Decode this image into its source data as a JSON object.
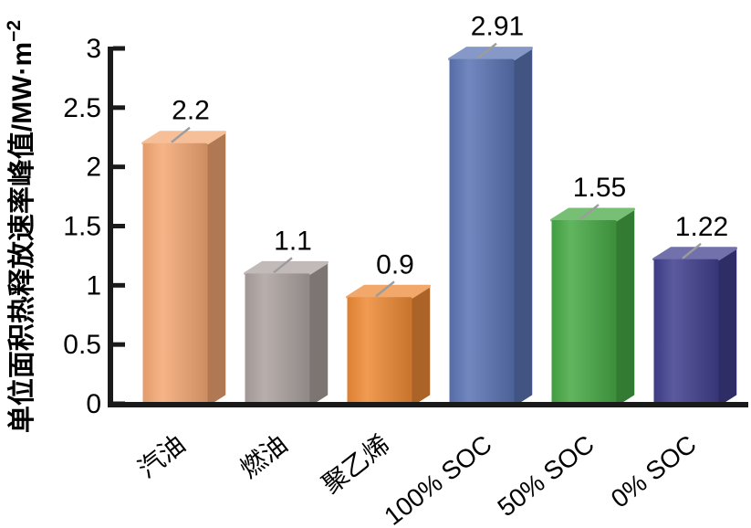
{
  "chart_data": {
    "type": "bar",
    "title": "",
    "xlabel": "",
    "ylabel": "单位面积热释放速率峰值/MW·m⁻²",
    "ylabel_main": "单位面积热释放速率峰值/MW·m",
    "ylabel_sup": "−2",
    "categories": [
      "汽油",
      "燃油",
      "聚乙烯",
      "100% SOC",
      "50% SOC",
      "0% SOC"
    ],
    "values": [
      2.2,
      1.1,
      0.9,
      2.91,
      1.55,
      1.22
    ],
    "value_labels": [
      "2.2",
      "1.1",
      "0.9",
      "2.91",
      "1.55",
      "1.22"
    ],
    "bar_colors": [
      "#F4A873",
      "#ACA29F",
      "#EE8A36",
      "#5B74B4",
      "#47A945",
      "#403F8E"
    ],
    "ylim": [
      0,
      3
    ],
    "yticks": [
      0,
      0.5,
      1,
      1.5,
      2,
      2.5,
      3
    ],
    "ytick_labels": [
      "0",
      "0.5",
      "1",
      "1.5",
      "2",
      "2.5",
      "3"
    ],
    "grid": "off",
    "legend": "none",
    "bar_style": "3d",
    "background_color": "#FFFFFF",
    "axis_color": "#1A1A1A",
    "leader_line_color": "#9C9C9C",
    "text_color": "#000000"
  }
}
